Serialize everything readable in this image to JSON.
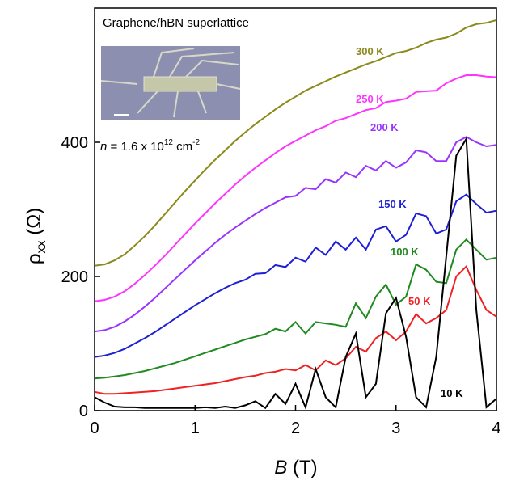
{
  "chart_data": {
    "type": "line",
    "title": "Graphene/hBN superlattice",
    "annotation": {
      "italic": "n",
      "text": " = 1.6 x 10",
      "superscript": "12",
      "unit": " cm",
      "unit_superscript": "-2"
    },
    "x_label": {
      "symbol": "B",
      "unit": " (T)"
    },
    "y_label": {
      "symbol": "ρ",
      "subscript": "xx",
      "unit": " (Ω)"
    },
    "xlim": [
      0,
      4
    ],
    "xticks": [
      0,
      1,
      2,
      3,
      4
    ],
    "ylim": [
      0,
      600
    ],
    "yticks": [
      0,
      200,
      400
    ],
    "x": [
      0,
      0.1,
      0.2,
      0.3,
      0.4,
      0.5,
      0.6,
      0.7,
      0.8,
      0.9,
      1.0,
      1.1,
      1.2,
      1.3,
      1.4,
      1.5,
      1.6,
      1.7,
      1.8,
      1.9,
      2.0,
      2.1,
      2.2,
      2.3,
      2.4,
      2.5,
      2.6,
      2.7,
      2.8,
      2.9,
      3.0,
      3.1,
      3.2,
      3.3,
      3.4,
      3.5,
      3.6,
      3.7,
      3.8,
      3.9,
      4.0
    ],
    "series": [
      {
        "name": "300 K",
        "color": "#8b8a1c",
        "values": [
          216,
          218,
          224,
          233,
          246,
          260,
          276,
          293,
          310,
          327,
          343,
          359,
          374,
          388,
          402,
          415,
          427,
          438,
          449,
          459,
          468,
          477,
          484,
          491,
          498,
          504,
          510,
          516,
          521,
          527,
          533,
          536,
          541,
          548,
          553,
          556,
          562,
          571,
          576,
          578,
          582
        ]
      },
      {
        "name": "250 K",
        "color": "#ff33ff",
        "values": [
          163,
          165,
          170,
          178,
          189,
          202,
          216,
          231,
          247,
          263,
          279,
          294,
          309,
          323,
          337,
          350,
          362,
          373,
          384,
          394,
          402,
          410,
          418,
          424,
          432,
          436,
          442,
          448,
          451,
          460,
          462,
          465,
          475,
          476,
          477,
          488,
          495,
          500,
          500,
          498,
          497
        ]
      },
      {
        "name": "200 K",
        "color": "#9933ff",
        "values": [
          118,
          120,
          125,
          133,
          143,
          155,
          168,
          182,
          196,
          210,
          224,
          237,
          250,
          262,
          273,
          283,
          293,
          302,
          310,
          318,
          320,
          332,
          330,
          345,
          340,
          355,
          348,
          365,
          358,
          372,
          362,
          370,
          388,
          385,
          372,
          372,
          400,
          408,
          400,
          394,
          396
        ]
      },
      {
        "name": "150 K",
        "color": "#1f1fd6",
        "values": [
          80,
          82,
          86,
          92,
          100,
          108,
          117,
          127,
          137,
          147,
          157,
          166,
          175,
          183,
          190,
          195,
          204,
          205,
          217,
          214,
          228,
          222,
          243,
          232,
          252,
          240,
          258,
          240,
          270,
          275,
          252,
          262,
          294,
          290,
          264,
          270,
          312,
          322,
          308,
          295,
          298
        ]
      },
      {
        "name": "100 K",
        "color": "#1f8a1f",
        "values": [
          48,
          49,
          51,
          53,
          56,
          59,
          63,
          67,
          71,
          76,
          81,
          86,
          91,
          96,
          101,
          106,
          110,
          114,
          122,
          118,
          132,
          115,
          132,
          130,
          128,
          125,
          160,
          138,
          170,
          188,
          158,
          170,
          218,
          210,
          192,
          190,
          240,
          255,
          240,
          225,
          228
        ]
      },
      {
        "name": "50 K",
        "color": "#ee2222",
        "values": [
          28,
          25,
          25,
          26,
          27,
          28,
          29,
          31,
          33,
          35,
          37,
          39,
          41,
          44,
          47,
          50,
          52,
          56,
          58,
          62,
          60,
          68,
          60,
          75,
          68,
          78,
          95,
          88,
          108,
          118,
          105,
          118,
          144,
          130,
          138,
          150,
          200,
          215,
          180,
          150,
          140
        ]
      },
      {
        "name": "10 K",
        "color": "#000000",
        "values": [
          20,
          12,
          6,
          5,
          5,
          4,
          4,
          4,
          4,
          4,
          4,
          5,
          4,
          6,
          4,
          8,
          14,
          4,
          25,
          10,
          40,
          5,
          62,
          20,
          5,
          80,
          115,
          20,
          40,
          145,
          168,
          110,
          20,
          5,
          80,
          230,
          380,
          405,
          150,
          5,
          18
        ]
      }
    ]
  }
}
